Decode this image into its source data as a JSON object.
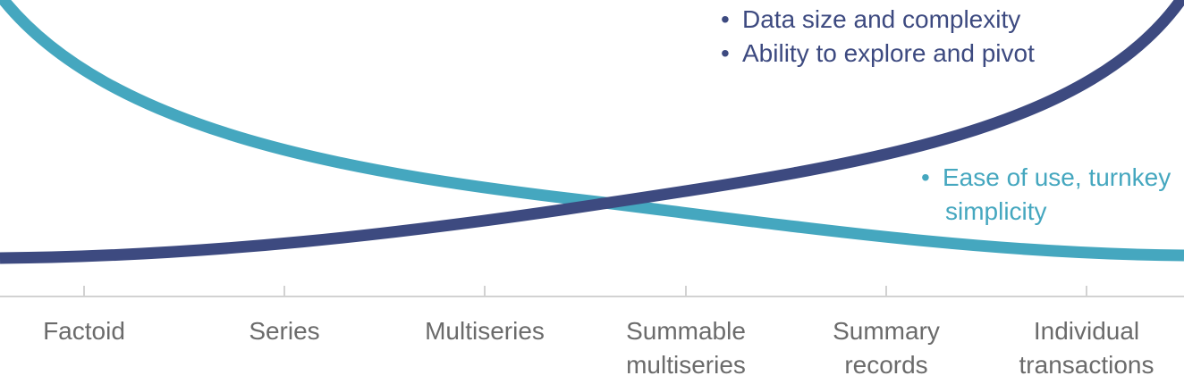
{
  "colors": {
    "dark_series": "#3d4a80",
    "light_series": "#45a7bf",
    "axis": "#d2d2d2",
    "tick_text": "#6b6b6b"
  },
  "legend_dark": {
    "items": [
      "Data size and complexity",
      "Ability to explore and pivot"
    ],
    "bullet": "•"
  },
  "legend_light": {
    "line1": "Ease of use, turnkey",
    "line2": "simplicity",
    "bullet": "•"
  },
  "axis_categories": [
    {
      "line1": "Factoid",
      "line2": ""
    },
    {
      "line1": "Series",
      "line2": ""
    },
    {
      "line1": "Multiseries",
      "line2": ""
    },
    {
      "line1": "Summable",
      "line2": "multiseries"
    },
    {
      "line1": "Summary",
      "line2": "records"
    },
    {
      "line1": "Individual",
      "line2": "transactions"
    }
  ]
}
